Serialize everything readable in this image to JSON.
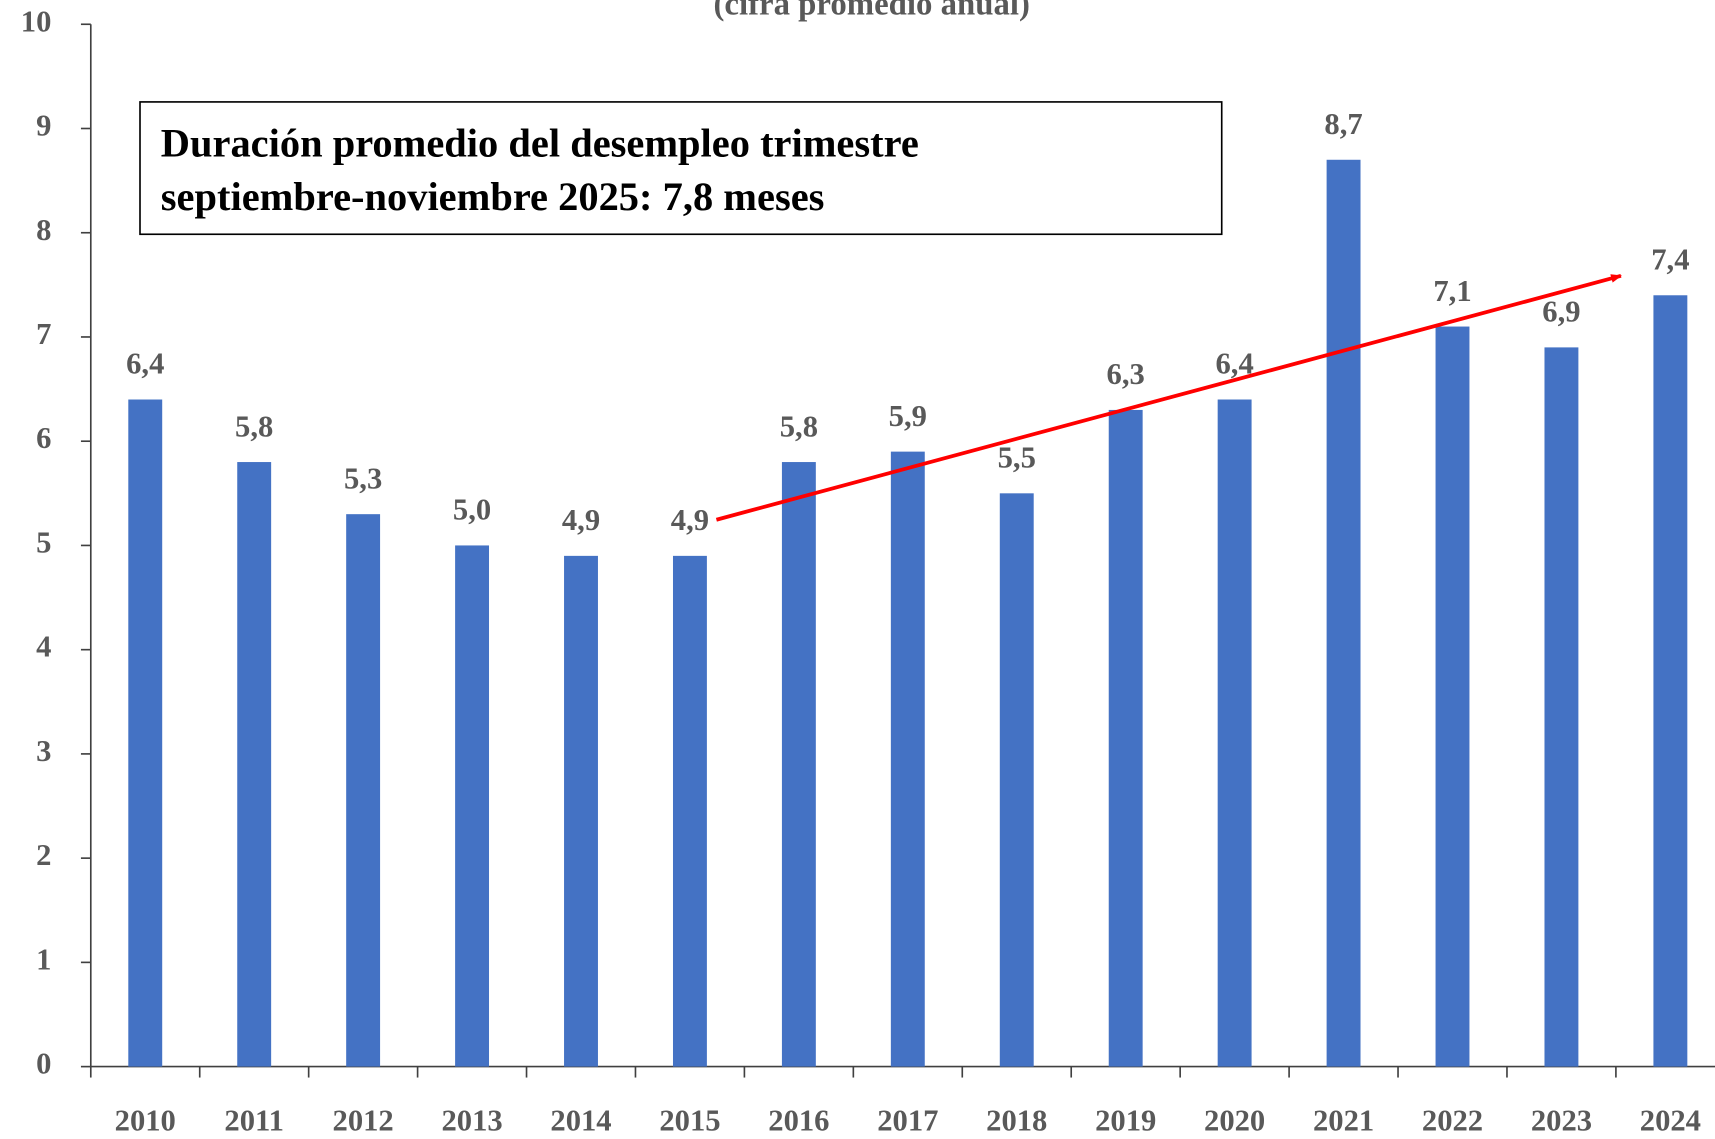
{
  "chart_data": {
    "type": "bar",
    "subtitle": "(cifra promedio anual)",
    "annotation": [
      "Duración promedio del desempleo trimestre",
      "septiembre-noviembre 2025: 7,8 meses"
    ],
    "categories": [
      "2010",
      "2011",
      "2012",
      "2013",
      "2014",
      "2015",
      "2016",
      "2017",
      "2018",
      "2019",
      "2020",
      "2021",
      "2022",
      "2023",
      "2024"
    ],
    "values": [
      6.4,
      5.8,
      5.3,
      5.0,
      4.9,
      4.9,
      5.8,
      5.9,
      5.5,
      6.3,
      6.4,
      8.7,
      7.1,
      6.9,
      7.4
    ],
    "value_labels": [
      "6,4",
      "5,8",
      "5,3",
      "5,0",
      "4,9",
      "4,9",
      "5,8",
      "5,9",
      "5,5",
      "6,3",
      "6,4",
      "8,7",
      "7,1",
      "6,9",
      "7,4"
    ],
    "color": "#4472c4",
    "ylim": [
      0,
      10
    ],
    "yticks": [
      0,
      1,
      2,
      3,
      4,
      5,
      6,
      7,
      8,
      9,
      10
    ],
    "grid": false
  }
}
